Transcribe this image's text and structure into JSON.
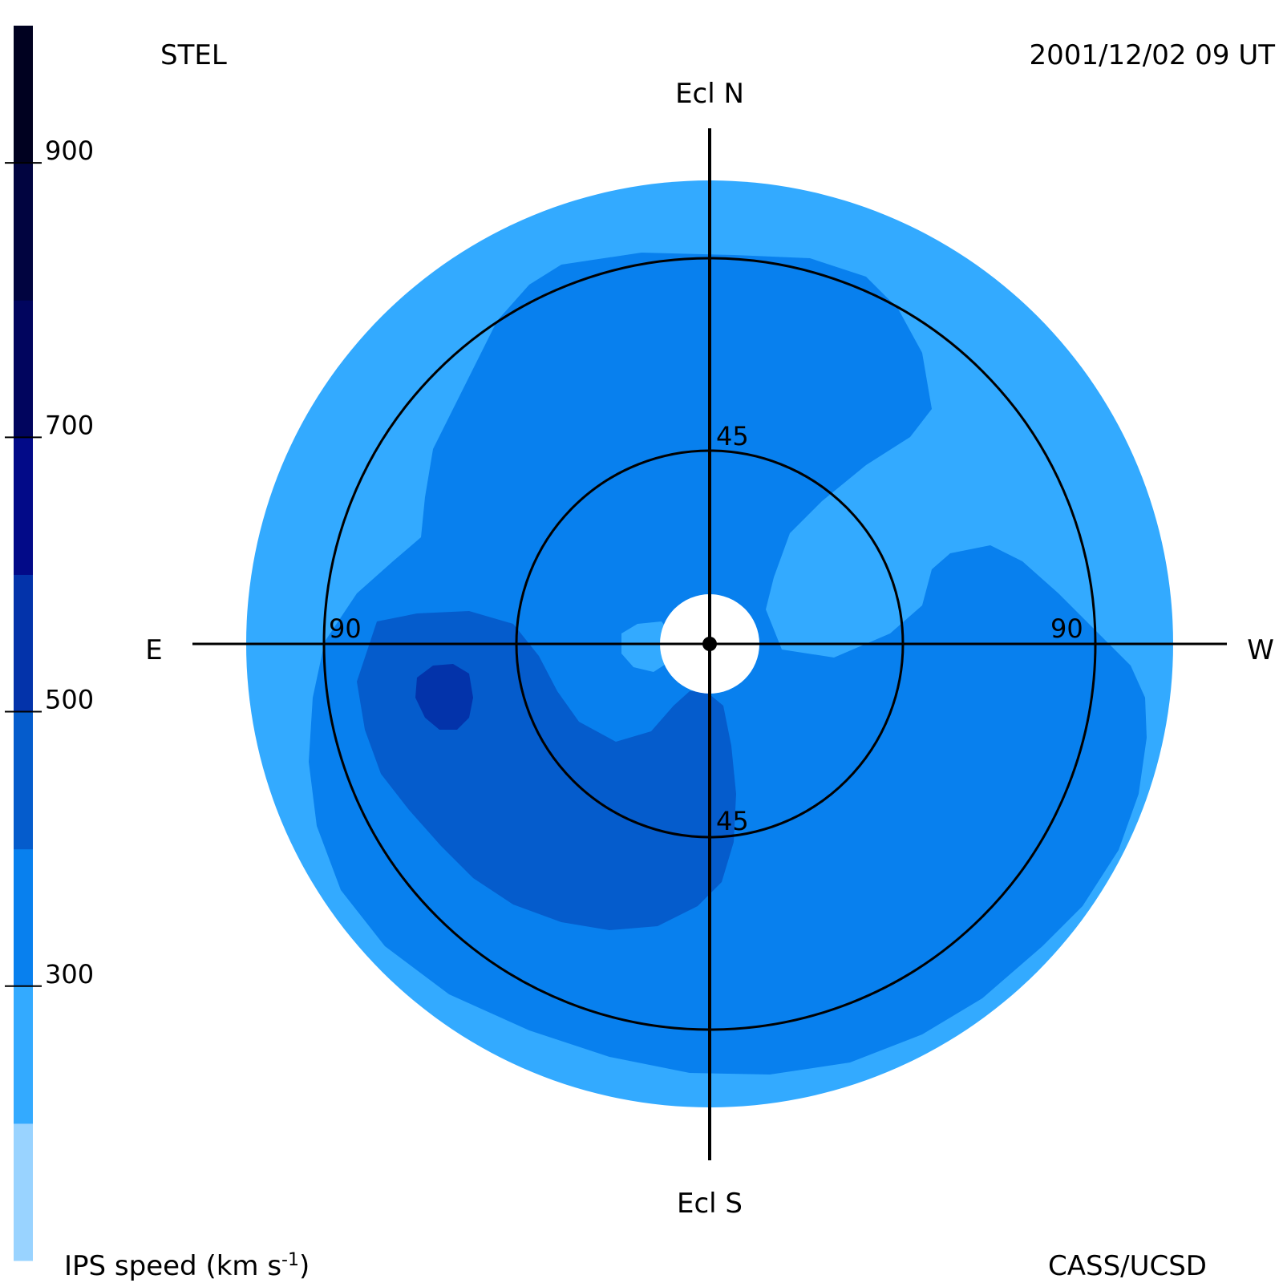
{
  "header": {
    "station": "STEL",
    "timestamp": "2001/12/02 09 UT"
  },
  "footer": {
    "colorbar_label_main": "IPS speed (km s",
    "colorbar_label_exp": "-1",
    "colorbar_label_close": ")",
    "credit": "CASS/UCSD"
  },
  "directions": {
    "north": "Ecl N",
    "south": "Ecl S",
    "east": "E",
    "west": "W"
  },
  "rings": {
    "inner_top": "45",
    "inner_bottom": "45",
    "outer_left": "90",
    "outer_right": "90"
  },
  "colors": {
    "outer_zone": "#33aaff",
    "mid_zone": "#0880ee",
    "dark_zone": "#055ccc",
    "darkest_zone": "#0333aa",
    "sun_disk": "#ffffff",
    "axis": "#000000"
  },
  "chart_data": {
    "type": "heatmap",
    "projection": "fisheye sky map, ecliptic coordinates",
    "elongation_rings_deg": [
      45,
      90
    ],
    "colorbar": {
      "label": "IPS speed (km s-1)",
      "ticks": [
        300,
        500,
        700,
        900
      ],
      "range": [
        100,
        1000
      ],
      "levels": [
        {
          "min": 100,
          "max": 200,
          "color": "#99d3ff"
        },
        {
          "min": 200,
          "max": 300,
          "color": "#33aaff"
        },
        {
          "min": 300,
          "max": 400,
          "color": "#0880ee"
        },
        {
          "min": 400,
          "max": 500,
          "color": "#055ccc"
        },
        {
          "min": 500,
          "max": 600,
          "color": "#0333aa"
        },
        {
          "min": 600,
          "max": 700,
          "color": "#020a88"
        },
        {
          "min": 700,
          "max": 800,
          "color": "#01055e"
        },
        {
          "min": 800,
          "max": 900,
          "color": "#010440"
        },
        {
          "min": 900,
          "max": 1000,
          "color": "#000120"
        }
      ]
    }
  }
}
